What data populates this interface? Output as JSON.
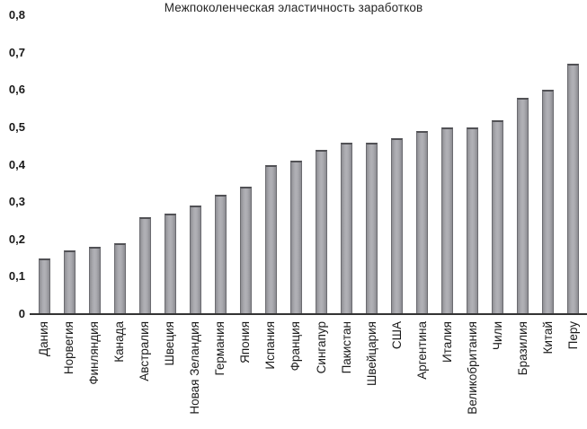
{
  "chart_data": {
    "type": "bar",
    "title": "Межпоколенческая эластичность заработков",
    "xlabel": "",
    "ylabel": "",
    "categories": [
      "Дания",
      "Норвегия",
      "Финляндия",
      "Канада",
      "Австралия",
      "Швеция",
      "Новая Зеландия",
      "Германия",
      "Япония",
      "Испания",
      "Франция",
      "Сингапур",
      "Пакистан",
      "Швейцария",
      "США",
      "Аргентина",
      "Италия",
      "Великобритания",
      "Чили",
      "Бразилия",
      "Китай",
      "Перу"
    ],
    "values": [
      0.15,
      0.17,
      0.18,
      0.19,
      0.26,
      0.27,
      0.29,
      0.32,
      0.34,
      0.4,
      0.41,
      0.44,
      0.46,
      0.46,
      0.47,
      0.49,
      0.5,
      0.5,
      0.52,
      0.58,
      0.6,
      0.67
    ],
    "ylim": [
      0,
      0.8
    ],
    "y_tick_values": [
      0,
      0.1,
      0.2,
      0.3,
      0.4,
      0.5,
      0.6,
      0.7,
      0.8
    ],
    "y_tick_labels": [
      "0",
      "0,1",
      "0,2",
      "0,3",
      "0,4",
      "0,5",
      "0,6",
      "0,7",
      "0,8"
    ],
    "decimal_separator": ",",
    "grid": false,
    "legend_position": "none",
    "x_label_rotation_deg": -90,
    "colors": {
      "bar_fill": "#a5a5aa",
      "bar_border": "#6b6b70",
      "axis_line": "#333333",
      "text": "#1a1a1a",
      "background": "#ffffff"
    }
  }
}
